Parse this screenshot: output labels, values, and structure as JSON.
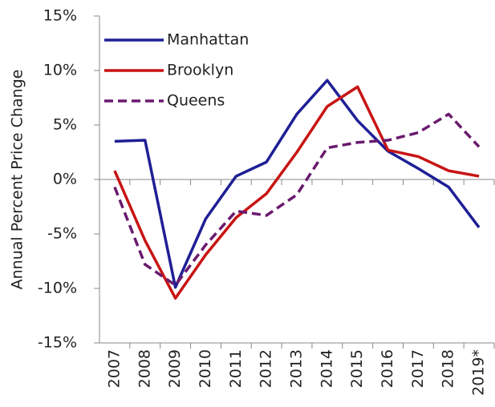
{
  "chart_data": {
    "type": "line",
    "y_label": "Annual Percent Price Change",
    "categories": [
      "2007",
      "2008",
      "2009",
      "2010",
      "2011",
      "2012",
      "2013",
      "2014",
      "2015",
      "2016",
      "2017",
      "2018",
      "2019*"
    ],
    "series": [
      {
        "name": "Manhattan",
        "color": "#1f1f96",
        "dashed": false,
        "values": [
          3.5,
          3.6,
          -9.9,
          -3.6,
          0.3,
          1.6,
          6.0,
          9.1,
          5.4,
          2.6,
          1.0,
          -0.7,
          -4.4
        ]
      },
      {
        "name": "Brooklyn",
        "color": "#c81414",
        "dashed": false,
        "values": [
          0.8,
          -5.6,
          -10.9,
          -6.9,
          -3.5,
          -1.3,
          2.5,
          6.7,
          8.5,
          2.7,
          2.1,
          0.8,
          0.3
        ]
      },
      {
        "name": "Queens",
        "color": "#6a1a6e",
        "dashed": true,
        "values": [
          -0.7,
          -7.8,
          -9.7,
          -6.0,
          -2.9,
          -3.3,
          -1.4,
          2.9,
          3.4,
          3.6,
          4.3,
          6.0,
          3.0
        ]
      }
    ],
    "ylim": [
      -15,
      15
    ],
    "yticks": [
      {
        "value": -15,
        "label": "-15%"
      },
      {
        "value": -10,
        "label": "-10%"
      },
      {
        "value": -5,
        "label": "-5%"
      },
      {
        "value": 0,
        "label": "0%"
      },
      {
        "value": 5,
        "label": "5%"
      },
      {
        "value": 10,
        "label": "10%"
      },
      {
        "value": 15,
        "label": "15%"
      }
    ],
    "legend": "upper left"
  }
}
